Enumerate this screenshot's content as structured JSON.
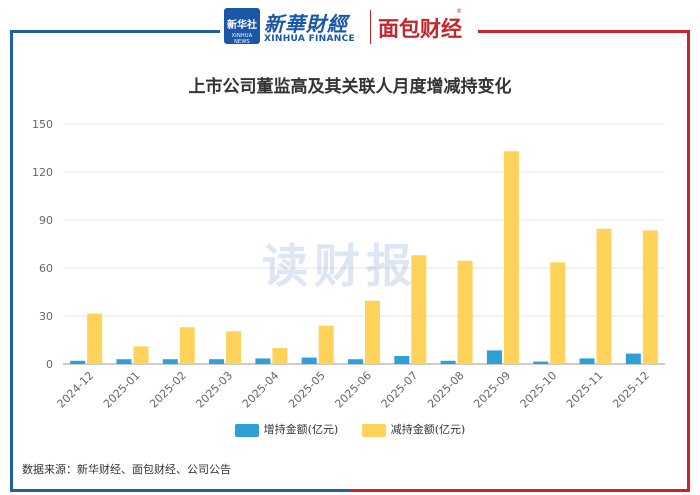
{
  "header": {
    "logo_cn": "新华社",
    "logo_en": "XINHUA NEWS",
    "brand1": "新華財經",
    "brand1_sub": "XINHUA FINANCE",
    "brand2": "面包财经",
    "brand2_mark": "®"
  },
  "watermark": "读财报",
  "source": "数据来源：新华财经、面包财经、公司公告",
  "colors": {
    "increase": "#2f9fd6",
    "decrease": "#ffd35a",
    "frame_left": "#1f5fa8",
    "frame_right": "#c3272b"
  },
  "chart_data": {
    "type": "bar",
    "title": "上市公司董监高及其关联人月度增减持变化",
    "categories": [
      "2024-12",
      "2025-01",
      "2025-02",
      "2025-03",
      "2025-04",
      "2025-05",
      "2025-06",
      "2025-07",
      "2025-08",
      "2025-09",
      "2025-10",
      "2025-11",
      "2025-12"
    ],
    "series": [
      {
        "name": "增持金额(亿元)",
        "values": [
          2,
          3,
          3,
          3,
          3.5,
          4,
          3,
          5,
          2,
          8.5,
          1.5,
          3.5,
          6.5
        ]
      },
      {
        "name": "减持金额(亿元)",
        "values": [
          31.5,
          11,
          23,
          20.5,
          10,
          24,
          39.5,
          68,
          64.5,
          133,
          63.5,
          84.5,
          83.5
        ]
      }
    ],
    "ylim": [
      0,
      150
    ],
    "yticks": [
      0,
      30,
      60,
      90,
      120,
      150
    ],
    "grid": true,
    "legend_position": "bottom-center"
  }
}
